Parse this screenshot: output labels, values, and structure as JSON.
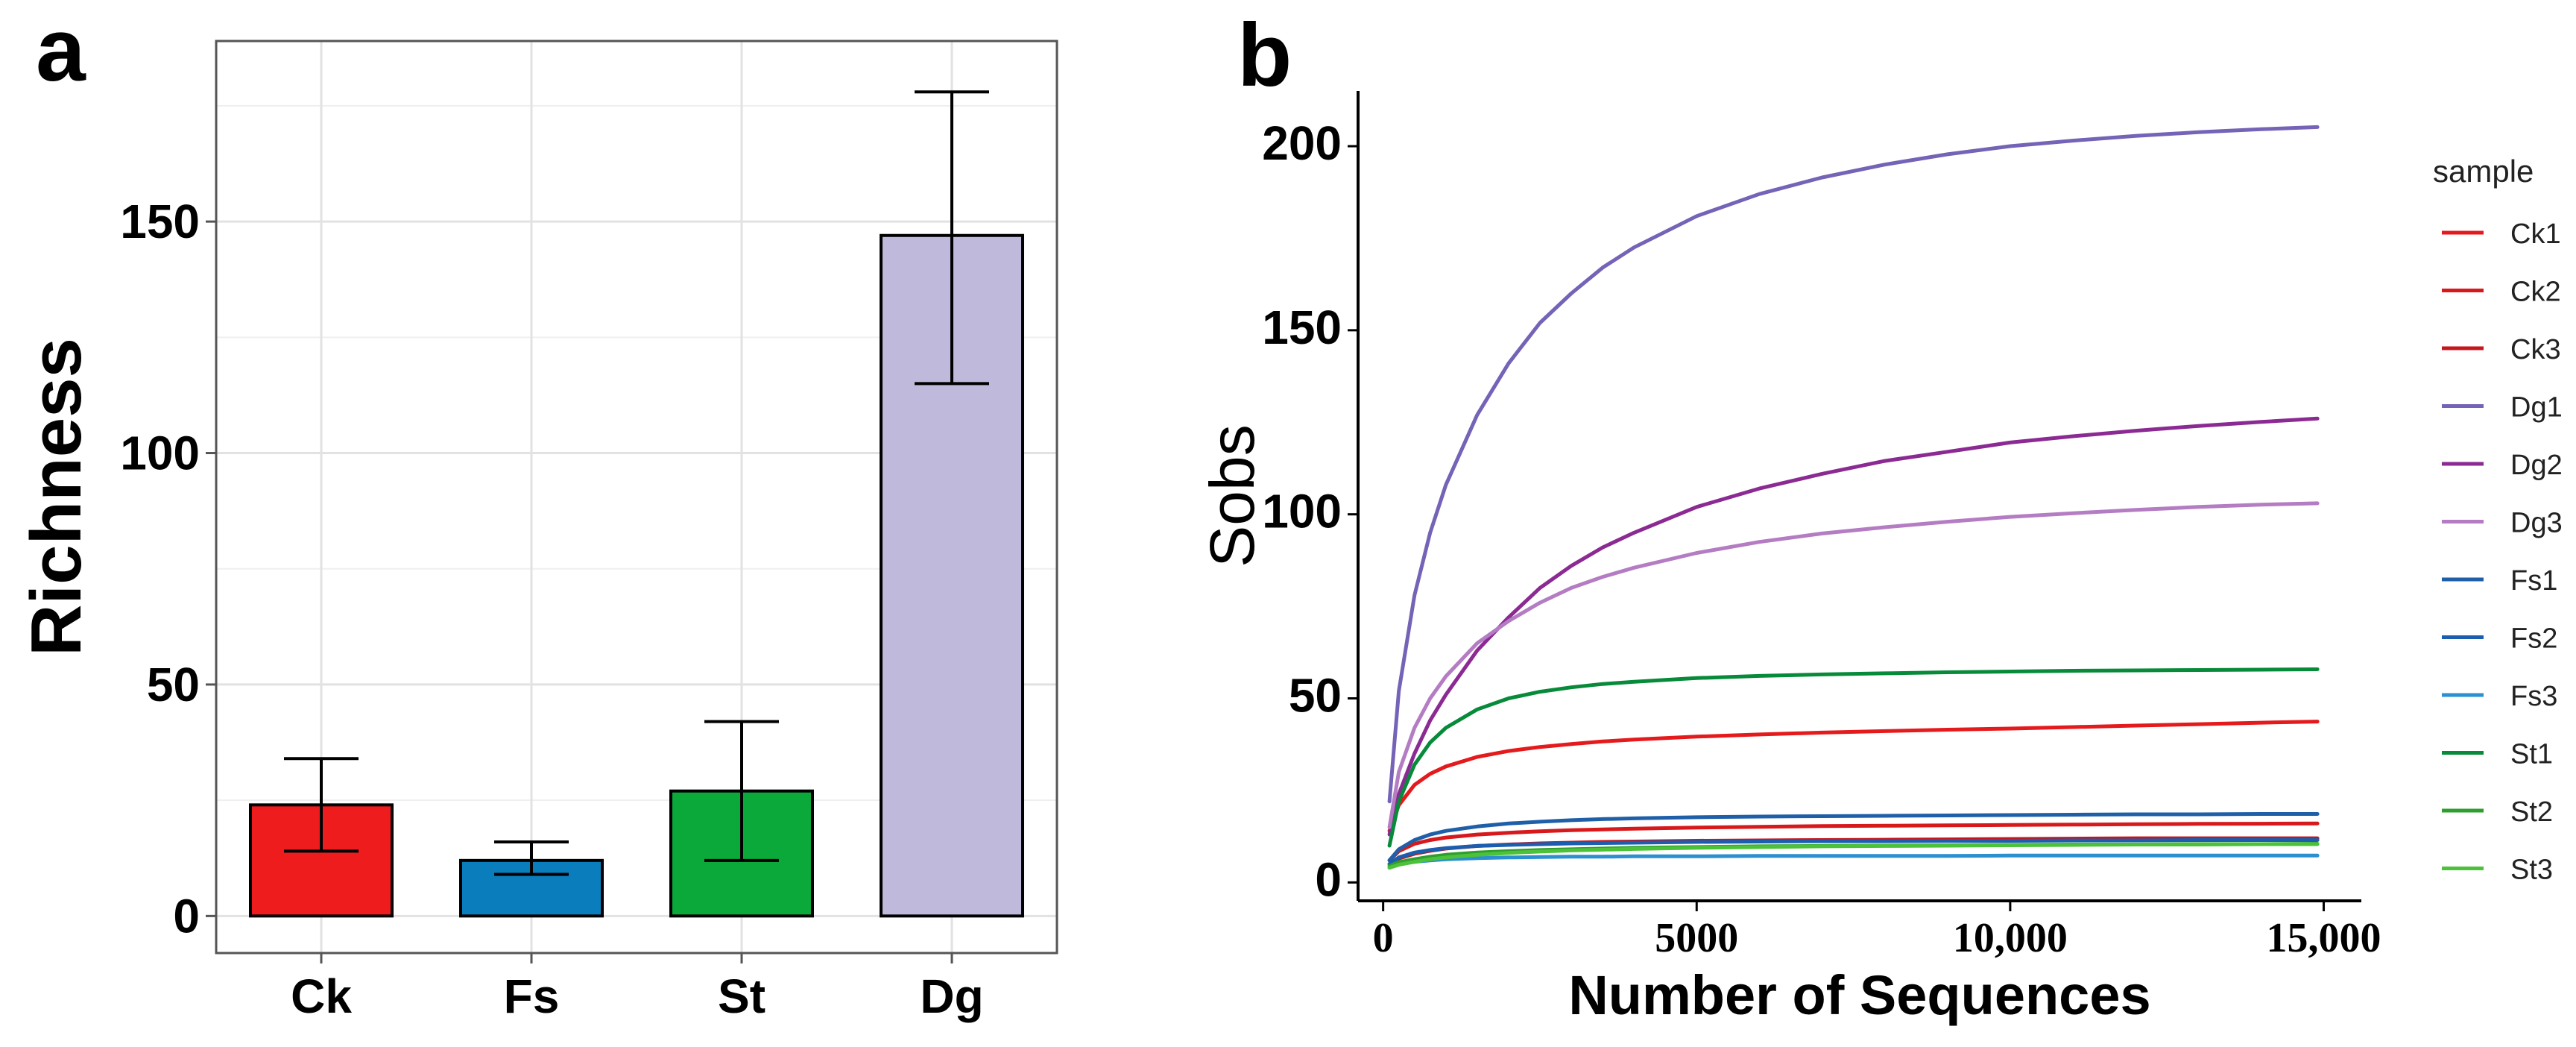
{
  "panel_a": {
    "letter": "a"
  },
  "panel_b": {
    "letter": "b"
  },
  "colors": {
    "Ck": "#ee1c1c",
    "Fs": "#0a7dbd",
    "St": "#0aa93a",
    "Dg": "#bfbadc"
  },
  "chart_data": [
    {
      "type": "bar",
      "title": "",
      "xlabel": "",
      "ylabel": "Richness",
      "ylim": [
        -8,
        189
      ],
      "yticks": [
        0,
        50,
        100,
        150
      ],
      "grid": true,
      "categories": [
        "Ck",
        "Fs",
        "St",
        "Dg"
      ],
      "values": [
        24,
        12,
        27,
        147
      ],
      "error_low": [
        14,
        9,
        12,
        115
      ],
      "error_high": [
        34,
        16,
        42,
        178
      ]
    },
    {
      "type": "line",
      "title": "",
      "xlabel": "Number of Sequences",
      "ylabel": "Sobs",
      "xlim": [
        -400,
        15600
      ],
      "ylim": [
        -5,
        215
      ],
      "xticks": [
        0,
        5000,
        10000,
        15000
      ],
      "xtick_labels": [
        "0",
        "5000",
        "10,000",
        "15,000"
      ],
      "yticks": [
        0,
        50,
        100,
        150,
        200
      ],
      "grid": false,
      "legend_title": "sample",
      "legend_position": "right",
      "x": [
        100,
        250,
        500,
        750,
        1000,
        1500,
        2000,
        2500,
        3000,
        3500,
        4000,
        5000,
        6000,
        7000,
        8000,
        9000,
        10000,
        11000,
        12000,
        13000,
        14000,
        14900
      ],
      "series": [
        {
          "name": "Ck1",
          "color": "#e41a1c",
          "values": [
            14,
            21,
            26.5,
            29.5,
            31.5,
            34.1,
            35.7,
            36.8,
            37.6,
            38.3,
            38.8,
            39.6,
            40.2,
            40.7,
            41.1,
            41.5,
            41.8,
            42.2,
            42.6,
            43,
            43.4,
            43.7
          ]
        },
        {
          "name": "Ck2",
          "color": "#d7191c",
          "values": [
            6,
            8.5,
            10.5,
            11.5,
            12.2,
            13,
            13.5,
            13.9,
            14.2,
            14.4,
            14.6,
            14.9,
            15.1,
            15.3,
            15.4,
            15.5,
            15.6,
            15.7,
            15.8,
            15.9,
            15.95,
            16
          ]
        },
        {
          "name": "Ck3",
          "color": "#c4161c",
          "values": [
            5,
            6.5,
            7.8,
            8.6,
            9.2,
            9.9,
            10.3,
            10.6,
            10.8,
            11,
            11.1,
            11.3,
            11.4,
            11.5,
            11.6,
            11.7,
            11.8,
            11.9,
            12,
            12,
            12,
            12
          ]
        },
        {
          "name": "Dg1",
          "color": "#7463b6",
          "values": [
            22,
            52,
            78,
            95,
            108,
            127,
            141,
            152,
            160,
            167,
            172.5,
            181,
            187,
            191.5,
            195,
            197.8,
            200,
            201.5,
            202.8,
            203.8,
            204.6,
            205.2
          ]
        },
        {
          "name": "Dg2",
          "color": "#8b2a93",
          "values": [
            13,
            24,
            35,
            44,
            51,
            63,
            72,
            80,
            86,
            91,
            95,
            102,
            107,
            111,
            114.5,
            117,
            119.5,
            121.2,
            122.7,
            124,
            125.1,
            126
          ]
        },
        {
          "name": "Dg3",
          "color": "#b47cc3",
          "values": [
            15,
            30,
            42,
            50,
            56,
            65,
            71,
            76,
            80,
            83,
            85.5,
            89.5,
            92.5,
            94.8,
            96.5,
            98,
            99.3,
            100.3,
            101.2,
            102,
            102.6,
            103
          ]
        },
        {
          "name": "Fs1",
          "color": "#1f5fa8",
          "values": [
            6,
            9,
            11.5,
            13,
            14,
            15.2,
            16,
            16.5,
            16.9,
            17.2,
            17.4,
            17.7,
            17.9,
            18,
            18.1,
            18.2,
            18.3,
            18.4,
            18.5,
            18.5,
            18.6,
            18.6
          ]
        },
        {
          "name": "Fs2",
          "color": "#1b5dae",
          "values": [
            5,
            6.8,
            8.1,
            8.8,
            9.3,
            9.9,
            10.2,
            10.4,
            10.6,
            10.7,
            10.8,
            11,
            11.1,
            11.2,
            11.2,
            11.3,
            11.3,
            11.4,
            11.4,
            11.5,
            11.5,
            11.5
          ]
        },
        {
          "name": "Fs3",
          "color": "#2b8fd0",
          "values": [
            4,
            5,
            5.6,
            6,
            6.3,
            6.6,
            6.8,
            6.9,
            7,
            7,
            7.1,
            7.1,
            7.2,
            7.2,
            7.2,
            7.2,
            7.3,
            7.3,
            7.3,
            7.3,
            7.3,
            7.3
          ]
        },
        {
          "name": "St1",
          "color": "#078a3a",
          "values": [
            10,
            22,
            32,
            38,
            42,
            47,
            50,
            51.8,
            53,
            53.9,
            54.5,
            55.5,
            56.1,
            56.5,
            56.8,
            57.1,
            57.3,
            57.5,
            57.6,
            57.7,
            57.8,
            57.9
          ]
        },
        {
          "name": "St2",
          "color": "#2e9e2e",
          "values": [
            4.5,
            5.5,
            6.3,
            7,
            7.5,
            8.1,
            8.5,
            8.8,
            9,
            9.2,
            9.4,
            9.6,
            9.8,
            9.9,
            10,
            10.1,
            10.2,
            10.3,
            10.3,
            10.4,
            10.4,
            10.5
          ]
        },
        {
          "name": "St3",
          "color": "#4cc23a",
          "values": [
            4,
            4.8,
            5.6,
            6.3,
            6.8,
            7.5,
            8,
            8.4,
            8.7,
            8.9,
            9.1,
            9.4,
            9.6,
            9.8,
            9.9,
            10,
            10.1,
            10.2,
            10.3,
            10.3,
            10.4,
            10.4
          ]
        }
      ]
    }
  ]
}
